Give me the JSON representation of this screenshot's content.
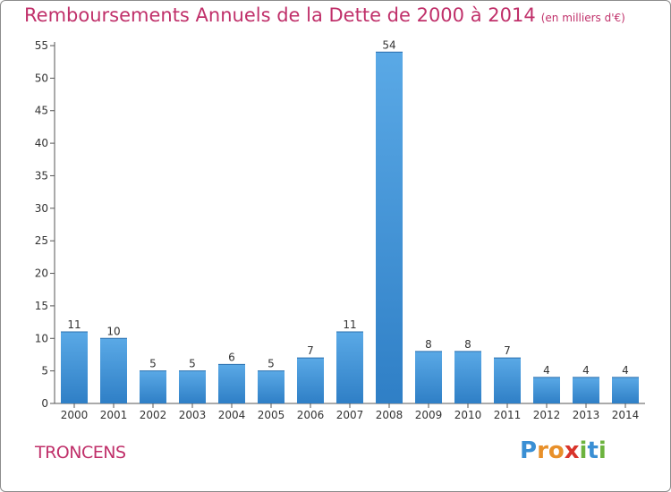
{
  "header": {
    "title": "Remboursements Annuels de la Dette de 2000 à 2014",
    "unit": "(en milliers d'€)"
  },
  "footer": {
    "commune": "TRONCENS",
    "logo_text": "Proxiti",
    "logo_letters": [
      "P",
      "r",
      "o",
      "x",
      "i",
      "t",
      "i"
    ],
    "logo_colors": [
      "#3a8fd4",
      "#e8902a",
      "#e8902a",
      "#d9342b",
      "#6cb33f",
      "#3a8fd4",
      "#6cb33f"
    ]
  },
  "colors": {
    "title": "#c0306a",
    "bar_light": "#5aa9e6",
    "bar_dark": "#2f7fc6",
    "axis": "#555555"
  },
  "chart_data": {
    "type": "bar",
    "title": "Remboursements Annuels de la Dette de 2000 à 2014",
    "subtitle": "(en milliers d'€)",
    "categories": [
      "2000",
      "2001",
      "2002",
      "2003",
      "2004",
      "2005",
      "2006",
      "2007",
      "2008",
      "2009",
      "2010",
      "2011",
      "2012",
      "2013",
      "2014"
    ],
    "values": [
      11,
      10,
      5,
      5,
      6,
      5,
      7,
      11,
      54,
      8,
      8,
      7,
      4,
      4,
      4
    ],
    "data_labels": [
      "11",
      "10",
      "5",
      "5",
      "6",
      "5",
      "7",
      "11",
      "54",
      "8",
      "8",
      "7",
      "4",
      "4",
      "4"
    ],
    "ylim": [
      0,
      55
    ],
    "yticks": [
      0,
      5,
      10,
      15,
      20,
      25,
      30,
      35,
      40,
      45,
      50,
      55
    ],
    "grid": false,
    "legend": "none"
  }
}
